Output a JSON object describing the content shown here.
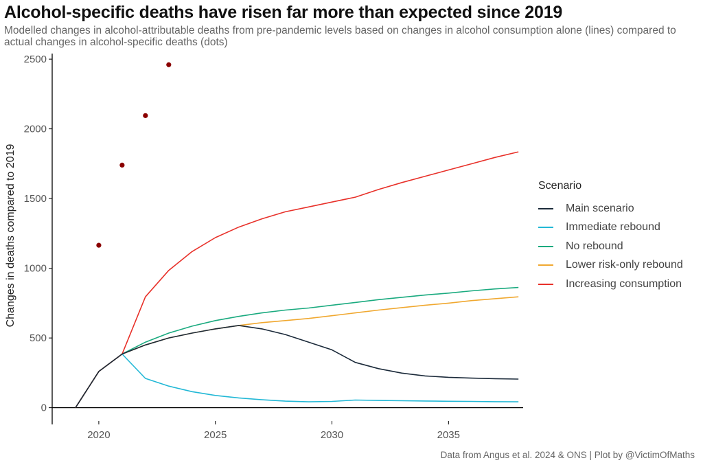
{
  "title": "Alcohol-specific deaths have risen far more than expected since 2019",
  "subtitle": "Modelled changes in alcohol-attributable deaths from pre-pandemic levels based on changes in alcohol consumption alone (lines) compared to actual changes in alcohol-specific deaths (dots)",
  "caption": "Data from Angus et al. 2024 & ONS | Plot by @VictimOfMaths",
  "legend": {
    "title": "Scenario",
    "items": [
      {
        "label": "Main scenario",
        "color": "#1b2a3a"
      },
      {
        "label": "Immediate rebound",
        "color": "#22b8d6"
      },
      {
        "label": "No rebound",
        "color": "#1aaa7f"
      },
      {
        "label": "Lower risk-only rebound",
        "color": "#f0a830"
      },
      {
        "label": "Increasing consumption",
        "color": "#e8312a"
      }
    ]
  },
  "chart_data": {
    "type": "line",
    "title": "Alcohol-specific deaths have risen far more than expected since 2019",
    "xlabel": "",
    "ylabel": "Changes in deaths compared to 2019",
    "xlim": [
      2018,
      2038.2
    ],
    "ylim": [
      -120,
      2540
    ],
    "xticks": [
      2020,
      2025,
      2030,
      2035
    ],
    "yticks": [
      0,
      500,
      1000,
      1500,
      2000,
      2500
    ],
    "series": [
      {
        "name": "Lower risk-only rebound",
        "color": "#f0a830",
        "x": [
          2019,
          2020,
          2021,
          2022,
          2023,
          2024,
          2025,
          2026,
          2027,
          2028,
          2029,
          2030,
          2031,
          2032,
          2033,
          2034,
          2035,
          2036,
          2037,
          2038
        ],
        "y": [
          0,
          260,
          385,
          450,
          500,
          535,
          565,
          590,
          610,
          625,
          640,
          660,
          680,
          700,
          718,
          735,
          750,
          768,
          782,
          795
        ]
      },
      {
        "name": "No rebound",
        "color": "#1aaa7f",
        "x": [
          2019,
          2020,
          2021,
          2022,
          2023,
          2024,
          2025,
          2026,
          2027,
          2028,
          2029,
          2030,
          2031,
          2032,
          2033,
          2034,
          2035,
          2036,
          2037,
          2038
        ],
        "y": [
          0,
          260,
          385,
          470,
          535,
          585,
          625,
          655,
          680,
          700,
          715,
          735,
          755,
          775,
          792,
          808,
          822,
          838,
          852,
          862
        ]
      },
      {
        "name": "Increasing consumption",
        "color": "#e8312a",
        "x": [
          2019,
          2020,
          2021,
          2022,
          2023,
          2024,
          2025,
          2026,
          2027,
          2028,
          2029,
          2030,
          2031,
          2032,
          2033,
          2034,
          2035,
          2036,
          2037,
          2038
        ],
        "y": [
          0,
          260,
          385,
          795,
          985,
          1120,
          1220,
          1295,
          1355,
          1405,
          1440,
          1475,
          1510,
          1565,
          1615,
          1660,
          1705,
          1750,
          1795,
          1835
        ]
      },
      {
        "name": "Immediate rebound",
        "color": "#22b8d6",
        "x": [
          2021,
          2022,
          2023,
          2024,
          2025,
          2026,
          2027,
          2028,
          2029,
          2030,
          2031,
          2032,
          2033,
          2034,
          2035,
          2036,
          2037,
          2038
        ],
        "y": [
          385,
          210,
          155,
          115,
          88,
          70,
          57,
          47,
          42,
          45,
          55,
          52,
          50,
          48,
          46,
          45,
          43,
          42
        ]
      },
      {
        "name": "Main scenario",
        "color": "#1b2a3a",
        "x": [
          2019,
          2020,
          2021,
          2022,
          2023,
          2024,
          2025,
          2026,
          2027,
          2028,
          2029,
          2030,
          2031,
          2032,
          2033,
          2034,
          2035,
          2036,
          2037,
          2038
        ],
        "y": [
          0,
          260,
          385,
          450,
          500,
          535,
          565,
          590,
          565,
          525,
          470,
          415,
          325,
          280,
          248,
          228,
          218,
          212,
          208,
          205
        ]
      }
    ],
    "points": {
      "name": "Actual changes in alcohol-specific deaths",
      "color": "#8b0000",
      "x": [
        2020,
        2021,
        2022,
        2023
      ],
      "y": [
        1165,
        1740,
        2095,
        2460
      ]
    }
  }
}
